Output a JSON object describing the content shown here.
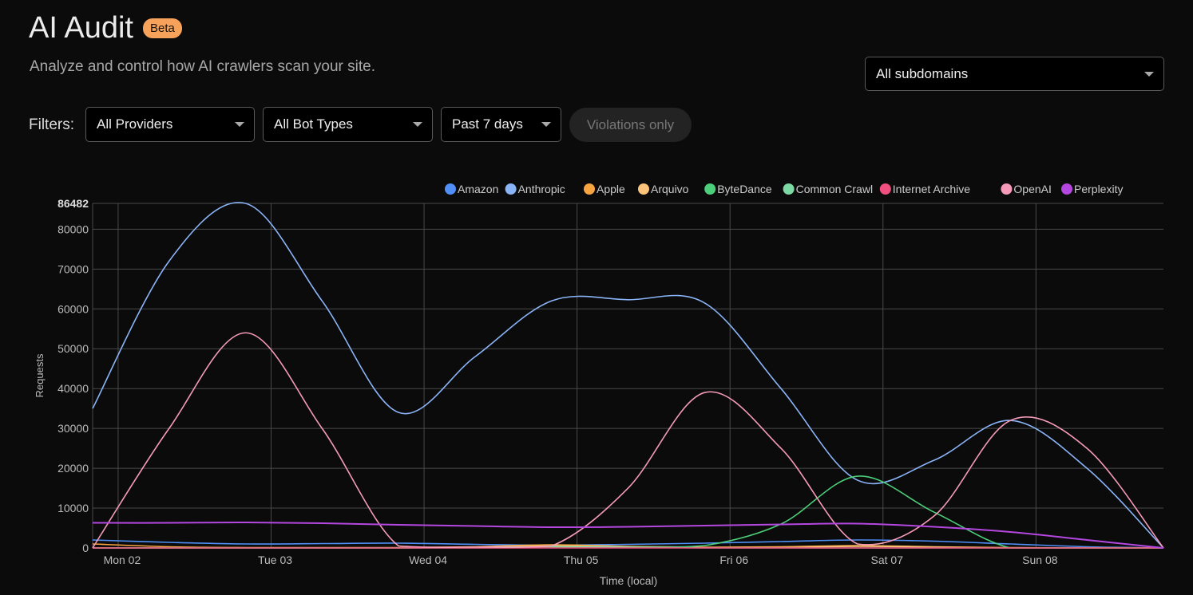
{
  "header": {
    "title": "AI Audit",
    "badge": "Beta",
    "subtitle": "Analyze and control how AI crawlers scan your site."
  },
  "subdomain_select": {
    "value": "All subdomains"
  },
  "filters": {
    "label": "Filters:",
    "provider": "All Providers",
    "bot_type": "All Bot Types",
    "period": "Past 7 days",
    "violations_toggle": "Violations only"
  },
  "chart_data": {
    "type": "line",
    "xlabel": "Time (local)",
    "ylabel": "Requests",
    "ylim": [
      0,
      86482
    ],
    "y_ticks": [
      "0",
      "10000",
      "20000",
      "30000",
      "40000",
      "50000",
      "60000",
      "70000",
      "80000",
      "86482"
    ],
    "x_ticks": [
      "Mon 02",
      "Tue 03",
      "Wed 04",
      "Thu 05",
      "Fri 06",
      "Sat 07",
      "Sun 08"
    ],
    "x_tick_days": [
      2,
      3,
      4,
      5,
      6,
      7,
      8
    ],
    "x": [
      "01 20:00",
      "02 08:00",
      "02 20:00",
      "03 08:00",
      "03 20:00",
      "04 08:00",
      "04 20:00",
      "05 08:00",
      "05 20:00",
      "06 08:00",
      "06 20:00",
      "07 08:00",
      "07 20:00",
      "08 08:00",
      "08 20:00"
    ],
    "grid": true,
    "legend_position": "top-right",
    "series": [
      {
        "name": "Amazon",
        "color": "#4f8ff7",
        "values": [
          2000,
          1400,
          1000,
          1100,
          1200,
          900,
          700,
          900,
          1200,
          1600,
          2000,
          1700,
          1000,
          300,
          0
        ]
      },
      {
        "name": "Anthropic",
        "color": "#8ab4f8",
        "values": [
          35000,
          72000,
          86482,
          62000,
          34000,
          48000,
          62000,
          62300,
          61500,
          40000,
          17000,
          22000,
          32000,
          20000,
          0
        ]
      },
      {
        "name": "Apple",
        "color": "#f6a440",
        "values": [
          1000,
          300,
          100,
          100,
          100,
          300,
          800,
          400,
          200,
          300,
          600,
          300,
          100,
          0,
          0
        ]
      },
      {
        "name": "Arquivo",
        "color": "#fcc47a",
        "values": [
          0,
          0,
          0,
          0,
          0,
          200,
          500,
          300,
          100,
          100,
          400,
          200,
          0,
          0,
          0
        ]
      },
      {
        "name": "ByteDance",
        "color": "#4ccf7a",
        "values": [
          0,
          0,
          0,
          0,
          0,
          0,
          100,
          200,
          600,
          6000,
          18000,
          9000,
          0,
          0,
          0
        ]
      },
      {
        "name": "Common Crawl",
        "color": "#7dd9a4",
        "values": [
          0,
          0,
          0,
          0,
          0,
          100,
          300,
          200,
          0,
          0,
          0,
          0,
          0,
          0,
          0
        ]
      },
      {
        "name": "Internet Archive",
        "color": "#f0507f",
        "values": [
          0,
          0,
          0,
          0,
          0,
          0,
          0,
          0,
          0,
          0,
          0,
          0,
          0,
          0,
          0
        ]
      },
      {
        "name": "OpenAI",
        "color": "#f59ab8",
        "values": [
          0,
          30000,
          54000,
          30000,
          500,
          200,
          500,
          15000,
          39000,
          25000,
          1000,
          8000,
          32000,
          25000,
          0
        ]
      },
      {
        "name": "Perplexity",
        "color": "#b447e0",
        "values": [
          6300,
          6300,
          6400,
          6200,
          5800,
          5500,
          5200,
          5300,
          5600,
          5900,
          6100,
          5300,
          4000,
          2000,
          0
        ]
      }
    ]
  }
}
